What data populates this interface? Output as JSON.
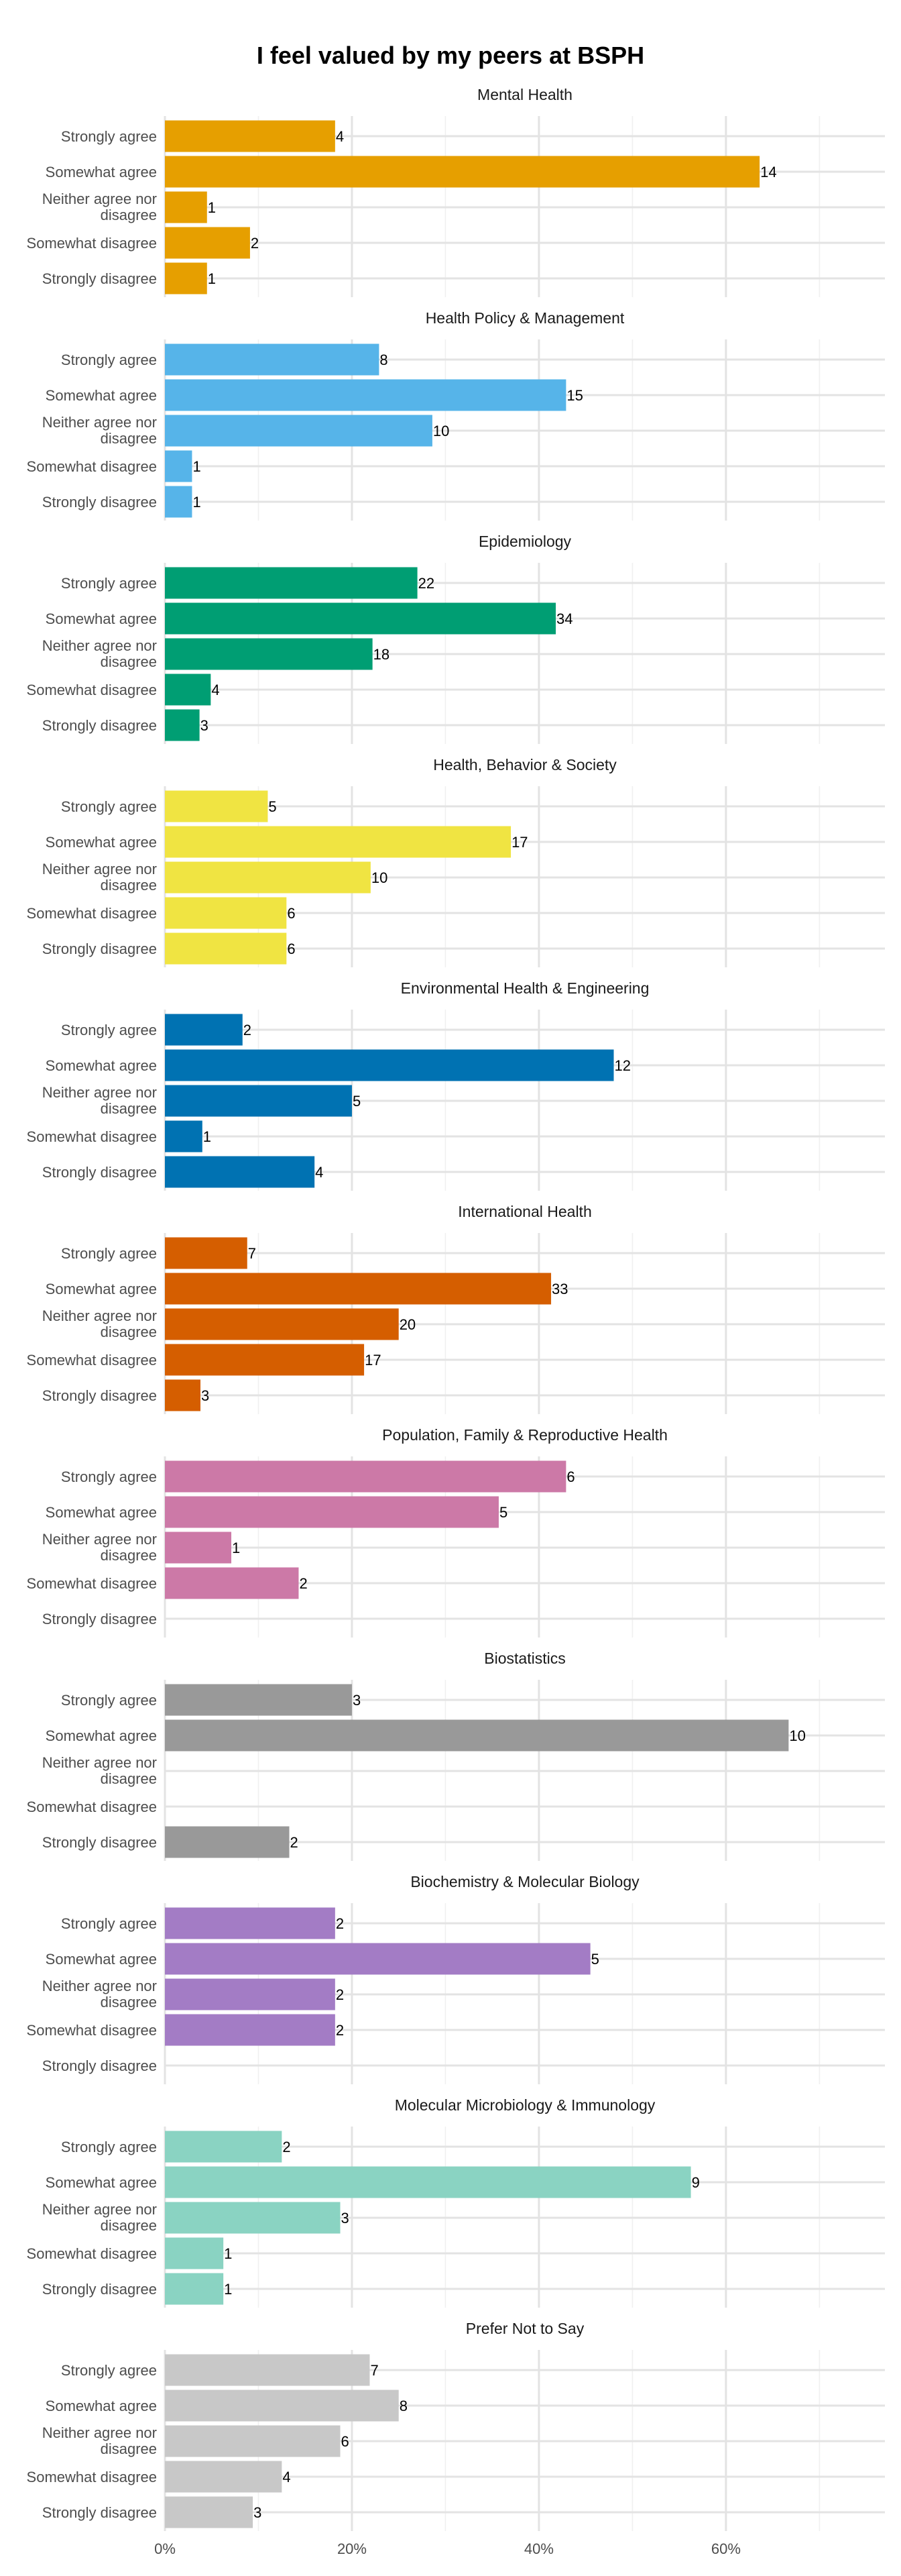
{
  "chart_data": {
    "type": "bar",
    "orientation": "horizontal",
    "title": "I feel valued by my peers at BSPH",
    "xlabel": "",
    "ylabel": "",
    "xlim": [
      0,
      0.77
    ],
    "x_ticks": [
      {
        "value": 0,
        "label": "0%"
      },
      {
        "value": 0.2,
        "label": "20%"
      },
      {
        "value": 0.4,
        "label": "40%"
      },
      {
        "value": 0.6,
        "label": "60%"
      }
    ],
    "grid": true,
    "legend": "none",
    "categories": [
      "Strongly agree",
      "Somewhat agree",
      "Neither agree nor disagree",
      "Somewhat disagree",
      "Strongly disagree"
    ],
    "panels": [
      {
        "name": "Mental Health",
        "color": "#E69F00",
        "percents": [
          0.182,
          0.636,
          0.045,
          0.091,
          0.045
        ],
        "counts": [
          4,
          14,
          1,
          2,
          1
        ]
      },
      {
        "name": "Health Policy & Management",
        "color": "#56B4E9",
        "percents": [
          0.229,
          0.429,
          0.286,
          0.029,
          0.029
        ],
        "counts": [
          8,
          15,
          10,
          1,
          1
        ]
      },
      {
        "name": "Epidemiology",
        "color": "#009E73",
        "percents": [
          0.27,
          0.418,
          0.222,
          0.049,
          0.037
        ],
        "counts": [
          22,
          34,
          18,
          4,
          3
        ]
      },
      {
        "name": "Health, Behavior & Society",
        "color": "#F0E442",
        "percents": [
          0.11,
          0.37,
          0.22,
          0.13,
          0.13
        ],
        "counts": [
          5,
          17,
          10,
          6,
          6
        ]
      },
      {
        "name": "Environmental Health & Engineering",
        "color": "#0072B2",
        "percents": [
          0.083,
          0.48,
          0.2,
          0.04,
          0.16
        ],
        "counts": [
          2,
          12,
          5,
          1,
          4
        ]
      },
      {
        "name": "International Health",
        "color": "#D55E00",
        "percents": [
          0.088,
          0.413,
          0.25,
          0.213,
          0.038
        ],
        "counts": [
          7,
          33,
          20,
          17,
          3
        ]
      },
      {
        "name": "Population, Family & Reproductive Health",
        "color": "#CC79A7",
        "percents": [
          0.429,
          0.357,
          0.071,
          0.143,
          null
        ],
        "counts": [
          6,
          5,
          1,
          2,
          null
        ]
      },
      {
        "name": "Biostatistics",
        "color": "#999999",
        "percents": [
          0.2,
          0.667,
          null,
          null,
          0.133
        ],
        "counts": [
          3,
          10,
          null,
          null,
          2
        ]
      },
      {
        "name": "Biochemistry & Molecular Biology",
        "color": "#A37CC5",
        "percents": [
          0.182,
          0.455,
          0.182,
          0.182,
          null
        ],
        "counts": [
          2,
          5,
          2,
          2,
          null
        ]
      },
      {
        "name": "Molecular Microbiology & Immunology",
        "color": "#8AD3C2",
        "percents": [
          0.125,
          0.5625,
          0.1875,
          0.0625,
          0.0625
        ],
        "counts": [
          2,
          9,
          3,
          1,
          1
        ]
      },
      {
        "name": "Prefer Not to Say",
        "color": "#C8C8C8",
        "percents": [
          0.219,
          0.25,
          0.1875,
          0.125,
          0.094
        ],
        "counts": [
          7,
          8,
          6,
          4,
          3
        ]
      }
    ]
  }
}
